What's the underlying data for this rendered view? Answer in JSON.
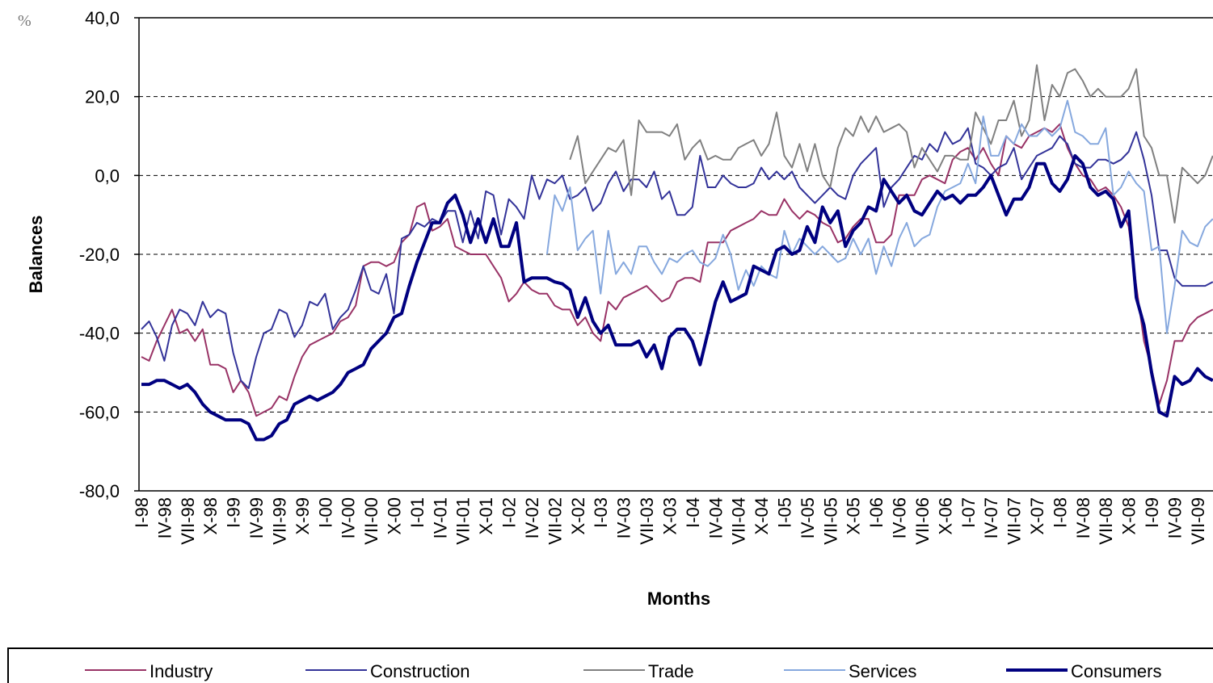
{
  "chart_data": {
    "type": "line",
    "y_unit": "%",
    "ylabel": "Balances",
    "xlabel": "Months",
    "ylim": [
      -80,
      40
    ],
    "yticks": [
      {
        "value": -80,
        "label": "-80,0"
      },
      {
        "value": -60,
        "label": "-60,0"
      },
      {
        "value": -40,
        "label": "-40,0"
      },
      {
        "value": -20,
        "label": "-20,0"
      },
      {
        "value": 0,
        "label": "0,0"
      },
      {
        "value": 20,
        "label": "20,0"
      },
      {
        "value": 40,
        "label": "40,0"
      }
    ],
    "grid": true,
    "legend": "bottom",
    "categories": [
      "I-98",
      null,
      null,
      "IV-98",
      null,
      null,
      "VII-98",
      null,
      null,
      "X-98",
      null,
      null,
      "I-99",
      null,
      null,
      "IV-99",
      null,
      null,
      "VII-99",
      null,
      null,
      "X-99",
      null,
      null,
      "I-00",
      null,
      null,
      "IV-00",
      null,
      null,
      "VII-00",
      null,
      null,
      "X-00",
      null,
      null,
      "I-01",
      null,
      null,
      "IV-01",
      null,
      null,
      "VII-01",
      null,
      null,
      "X-01",
      null,
      null,
      "I-02",
      null,
      null,
      "IV-02",
      null,
      null,
      "VII-02",
      null,
      null,
      "X-02",
      null,
      null,
      "I-03",
      null,
      null,
      "IV-03",
      null,
      null,
      "VII-03",
      null,
      null,
      "X-03",
      null,
      null,
      "I-04",
      null,
      null,
      "IV-04",
      null,
      null,
      "VII-04",
      null,
      null,
      "X-04",
      null,
      null,
      "I-05",
      null,
      null,
      "IV-05",
      null,
      null,
      "VII-05",
      null,
      null,
      "X-05",
      null,
      null,
      "I-06",
      null,
      null,
      "IV-06",
      null,
      null,
      "VII-06",
      null,
      null,
      "X-06",
      null,
      null,
      "I-07",
      null,
      null,
      "IV-07",
      null,
      null,
      "VII-07",
      null,
      null,
      "X-07",
      null,
      null,
      "I-08",
      null,
      null,
      "IV-08",
      null,
      null,
      "VII-08",
      null,
      null,
      "X-08",
      null,
      null,
      "I-09",
      null,
      null,
      "IV-09",
      null,
      null,
      "VII-09",
      null,
      null
    ],
    "series": [
      {
        "name": "Industry",
        "color": "#993366",
        "width": 2,
        "values": [
          -46,
          -47,
          -42,
          -38,
          -34,
          -40,
          -39,
          -42,
          -39,
          -48,
          -48,
          -49,
          -55,
          -52,
          -55,
          -61,
          -60,
          -59,
          -56,
          -57,
          -51,
          -46,
          -43,
          -42,
          -41,
          -40,
          -37,
          -36,
          -33,
          -23,
          -22,
          -22,
          -23,
          -22,
          -17,
          -15,
          -8,
          -7,
          -14,
          -13,
          -11,
          -18,
          -19,
          -20,
          -20,
          -20,
          -23,
          -26,
          -32,
          -30,
          -27,
          -29,
          -30,
          -30,
          -33,
          -34,
          -34,
          -38,
          -36,
          -40,
          -42,
          -32,
          -34,
          -31,
          -30,
          -29,
          -28,
          -30,
          -32,
          -31,
          -27,
          -26,
          -26,
          -27,
          -17,
          -17,
          -17,
          -14,
          -13,
          -12,
          -11,
          -9,
          -10,
          -10,
          -6,
          -9,
          -11,
          -9,
          -10,
          -12,
          -13,
          -17,
          -16,
          -13,
          -11,
          -11,
          -17,
          -17,
          -15,
          -5,
          -5,
          -5,
          -1,
          0,
          -1,
          -2,
          4,
          6,
          7,
          4,
          7,
          3,
          0,
          10,
          8,
          7,
          10,
          11,
          12,
          11,
          13,
          7,
          3,
          0,
          -1,
          -4,
          -3,
          -5,
          -8,
          -13,
          -28,
          -42,
          -49,
          -58,
          -52,
          -42,
          -42,
          -38,
          -36,
          -35,
          -34
        ]
      },
      {
        "name": "Construction",
        "color": "#333399",
        "width": 2,
        "values": [
          -39,
          -37,
          -41,
          -47,
          -38,
          -34,
          -35,
          -38,
          -32,
          -36,
          -34,
          -35,
          -45,
          -52,
          -54,
          -46,
          -40,
          -39,
          -34,
          -35,
          -41,
          -38,
          -32,
          -33,
          -30,
          -39,
          -36,
          -34,
          -29,
          -23,
          -29,
          -30,
          -25,
          -35,
          -16,
          -15,
          -12,
          -13,
          -11,
          -12,
          -9,
          -9,
          -17,
          -9,
          -16,
          -4,
          -5,
          -15,
          -6,
          -8,
          -11,
          0,
          -6,
          -1,
          -2,
          0,
          -6,
          -5,
          -3,
          -9,
          -7,
          -2,
          1,
          -4,
          -1,
          -1,
          -3,
          1,
          -6,
          -4,
          -10,
          -10,
          -8,
          5,
          -3,
          -3,
          0,
          -2,
          -3,
          -3,
          -2,
          2,
          -1,
          1,
          -1,
          1,
          -3,
          -5,
          -7,
          -5,
          -3,
          -5,
          -6,
          0,
          3,
          5,
          7,
          -8,
          -3,
          -1,
          2,
          5,
          4,
          8,
          6,
          11,
          8,
          9,
          12,
          3,
          2,
          0,
          2,
          3,
          7,
          -1,
          2,
          5,
          6,
          7,
          10,
          8,
          3,
          2,
          2,
          4,
          4,
          3,
          4,
          6,
          11,
          4,
          -5,
          -19,
          -19,
          -26,
          -28,
          -28,
          -28,
          -28,
          -27
        ]
      },
      {
        "name": "Trade",
        "color": "#808080",
        "width": 2,
        "values": [
          null,
          null,
          null,
          null,
          null,
          null,
          null,
          null,
          null,
          null,
          null,
          null,
          null,
          null,
          null,
          null,
          null,
          null,
          null,
          null,
          null,
          null,
          null,
          null,
          null,
          null,
          null,
          null,
          null,
          null,
          null,
          null,
          null,
          null,
          null,
          null,
          null,
          null,
          null,
          null,
          null,
          null,
          null,
          null,
          null,
          null,
          null,
          null,
          null,
          null,
          null,
          null,
          null,
          null,
          null,
          null,
          4,
          10,
          -2,
          1,
          4,
          7,
          6,
          9,
          -5,
          14,
          11,
          11,
          11,
          10,
          13,
          4,
          7,
          9,
          4,
          5,
          4,
          4,
          7,
          8,
          9,
          5,
          8,
          16,
          5,
          2,
          8,
          1,
          8,
          0,
          -3,
          7,
          12,
          10,
          15,
          11,
          15,
          11,
          12,
          13,
          11,
          2,
          7,
          4,
          1,
          5,
          5,
          4,
          4,
          16,
          12,
          8,
          14,
          14,
          19,
          10,
          14,
          28,
          14,
          23,
          20,
          26,
          27,
          24,
          20,
          22,
          20,
          20,
          20,
          22,
          27,
          10,
          7,
          0,
          0,
          -12,
          2,
          0,
          -2,
          0,
          5
        ]
      },
      {
        "name": "Services",
        "color": "#86a8de",
        "width": 2,
        "values": [
          null,
          null,
          null,
          null,
          null,
          null,
          null,
          null,
          null,
          null,
          null,
          null,
          null,
          null,
          null,
          null,
          null,
          null,
          null,
          null,
          null,
          null,
          null,
          null,
          null,
          null,
          null,
          null,
          null,
          null,
          null,
          null,
          null,
          null,
          null,
          null,
          null,
          null,
          null,
          null,
          null,
          null,
          null,
          null,
          null,
          null,
          null,
          null,
          null,
          null,
          null,
          null,
          null,
          -20,
          -5,
          -9,
          -3,
          -19,
          -16,
          -14,
          -30,
          -14,
          -25,
          -22,
          -25,
          -18,
          -18,
          -22,
          -25,
          -21,
          -22,
          -20,
          -19,
          -22,
          -23,
          -21,
          -15,
          -20,
          -29,
          -24,
          -28,
          -23,
          -25,
          -26,
          -14,
          -20,
          -16,
          -18,
          -20,
          -18,
          -20,
          -22,
          -21,
          -16,
          -20,
          -16,
          -25,
          -18,
          -23,
          -16,
          -12,
          -18,
          -16,
          -15,
          -8,
          -4,
          -3,
          -2,
          3,
          -2,
          15,
          5,
          5,
          10,
          8,
          13,
          10,
          10,
          12,
          10,
          12,
          19,
          11,
          10,
          8,
          8,
          12,
          -5,
          -3,
          1,
          -2,
          -4,
          -19,
          -18,
          -40,
          -28,
          -14,
          -17,
          -18,
          -13,
          -11
        ]
      },
      {
        "name": "Consumers",
        "color": "#000080",
        "width": 4,
        "values": [
          -53,
          -53,
          -52,
          -52,
          -53,
          -54,
          -53,
          -55,
          -58,
          -60,
          -61,
          -62,
          -62,
          -62,
          -63,
          -67,
          -67,
          -66,
          -63,
          -62,
          -58,
          -57,
          -56,
          -57,
          -56,
          -55,
          -53,
          -50,
          -49,
          -48,
          -44,
          -42,
          -40,
          -36,
          -35,
          -28,
          -22,
          -17,
          -12,
          -12,
          -7,
          -5,
          -10,
          -17,
          -11,
          -17,
          -11,
          -18,
          -18,
          -12,
          -27,
          -26,
          -26,
          -26,
          -27,
          -27.5,
          -29,
          -36,
          -31,
          -37,
          -40,
          -38,
          -43,
          -43,
          -43,
          -42,
          -46,
          -43,
          -49,
          -41,
          -39,
          -39,
          -42,
          -48,
          -40,
          -32,
          -27,
          -32,
          -31,
          -30,
          -23,
          -24,
          -25,
          -19,
          -18,
          -20,
          -19,
          -13,
          -17,
          -8,
          -12,
          -9,
          -18,
          -14,
          -12,
          -8,
          -9,
          -1,
          -4,
          -7,
          -5,
          -9,
          -10,
          -7,
          -4,
          -6,
          -5,
          -7,
          -5,
          -5,
          -3,
          0,
          -5,
          -10,
          -6,
          -6,
          -3,
          3,
          3,
          -2,
          -4,
          -1,
          5,
          3,
          -3,
          -5,
          -4,
          -6,
          -13,
          -9,
          -31,
          -38,
          -50,
          -60,
          -61,
          -51,
          -53,
          -52,
          -49,
          -51,
          -52
        ]
      }
    ]
  }
}
